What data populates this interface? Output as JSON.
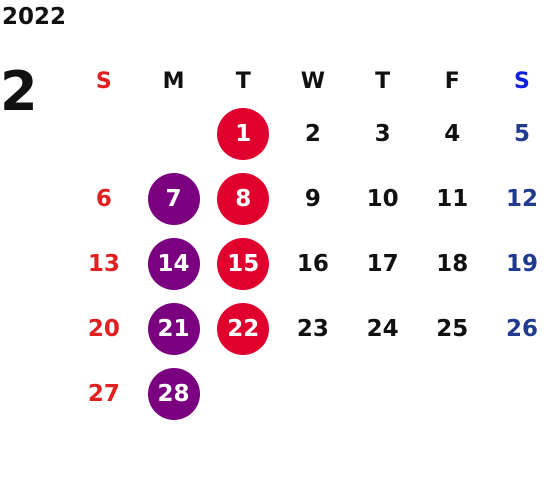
{
  "year": "2022",
  "month": "2",
  "weekdays": [
    {
      "label": "S",
      "kind": "sun"
    },
    {
      "label": "M",
      "kind": "weekday"
    },
    {
      "label": "T",
      "kind": "weekday"
    },
    {
      "label": "W",
      "kind": "weekday"
    },
    {
      "label": "T",
      "kind": "weekday"
    },
    {
      "label": "F",
      "kind": "weekday"
    },
    {
      "label": "S",
      "kind": "sat"
    }
  ],
  "colors": {
    "sunday": "#e02020",
    "saturday": "#1f3a8f",
    "saturday_header": "#1020e0",
    "red_circle": "#e0002d",
    "purple_circle": "#7a0080",
    "text": "#111111"
  },
  "weeks": [
    [
      null,
      null,
      {
        "day": "1",
        "mark": "red"
      },
      {
        "day": "2"
      },
      {
        "day": "3"
      },
      {
        "day": "4"
      },
      {
        "day": "5"
      }
    ],
    [
      {
        "day": "6"
      },
      {
        "day": "7",
        "mark": "purple"
      },
      {
        "day": "8",
        "mark": "red"
      },
      {
        "day": "9"
      },
      {
        "day": "10"
      },
      {
        "day": "11"
      },
      {
        "day": "12"
      }
    ],
    [
      {
        "day": "13"
      },
      {
        "day": "14",
        "mark": "purple"
      },
      {
        "day": "15",
        "mark": "red"
      },
      {
        "day": "16"
      },
      {
        "day": "17"
      },
      {
        "day": "18"
      },
      {
        "day": "19"
      }
    ],
    [
      {
        "day": "20"
      },
      {
        "day": "21",
        "mark": "purple"
      },
      {
        "day": "22",
        "mark": "red"
      },
      {
        "day": "23"
      },
      {
        "day": "24"
      },
      {
        "day": "25"
      },
      {
        "day": "26"
      }
    ],
    [
      {
        "day": "27"
      },
      {
        "day": "28",
        "mark": "purple"
      },
      null,
      null,
      null,
      null,
      null
    ]
  ]
}
